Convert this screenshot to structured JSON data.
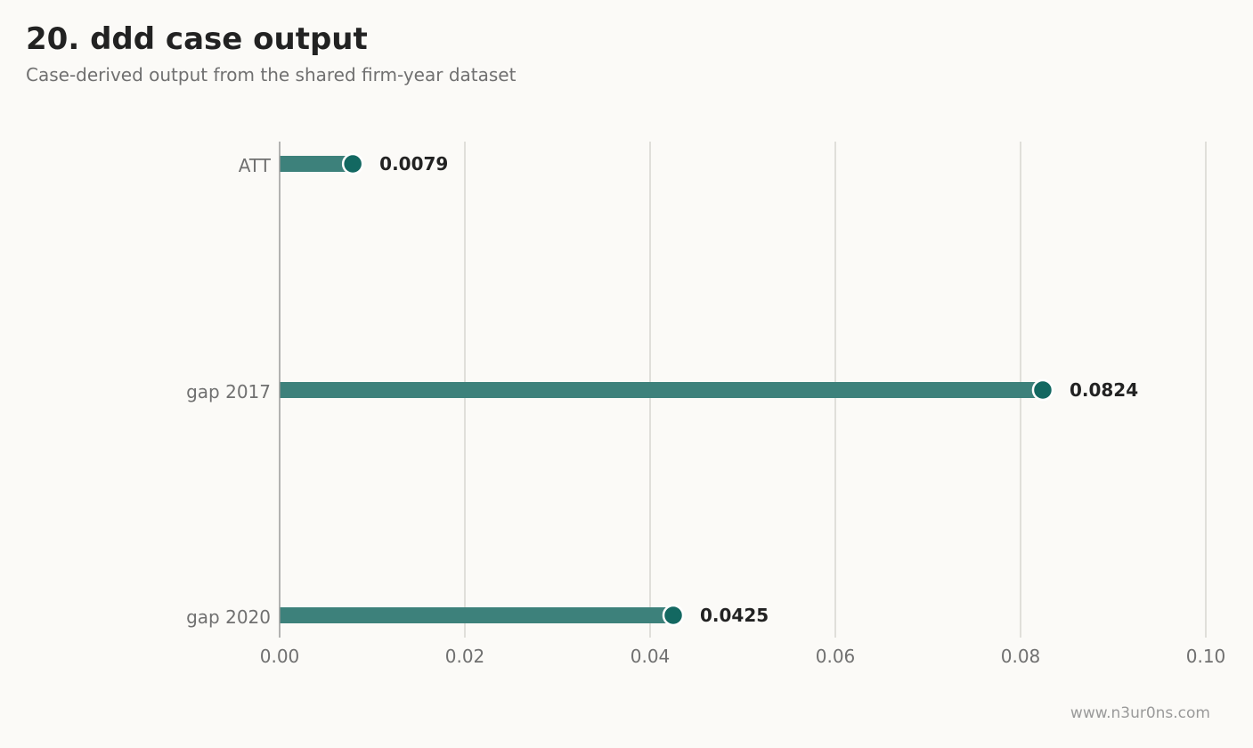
{
  "header": {
    "title": "20. ddd case output",
    "subtitle": "Case-derived output from the shared firm-year dataset"
  },
  "footer": {
    "watermark": "www.n3ur0ns.com"
  },
  "colors": {
    "background": "#fbfaf7",
    "bar": "#3d817b",
    "dot": "#136861",
    "dot_outline": "#ffffff",
    "grid": "#d8d6d1",
    "axis": "#9a9a9a"
  },
  "chart_data": {
    "type": "bar",
    "orientation": "horizontal",
    "style": "lollipop",
    "categories": [
      "ATT",
      "gap 2017",
      "gap 2020"
    ],
    "values": [
      0.0079,
      0.0824,
      0.0425
    ],
    "value_labels": [
      "0.0079",
      "0.0824",
      "0.0425"
    ],
    "xlim": [
      0,
      0.1
    ],
    "xticks": [
      0,
      0.02,
      0.04,
      0.06,
      0.08,
      0.1
    ],
    "xtick_labels": [
      "0.00",
      "0.02",
      "0.04",
      "0.06",
      "0.08",
      "0.10"
    ],
    "grid": "vertical",
    "legend": "none"
  }
}
